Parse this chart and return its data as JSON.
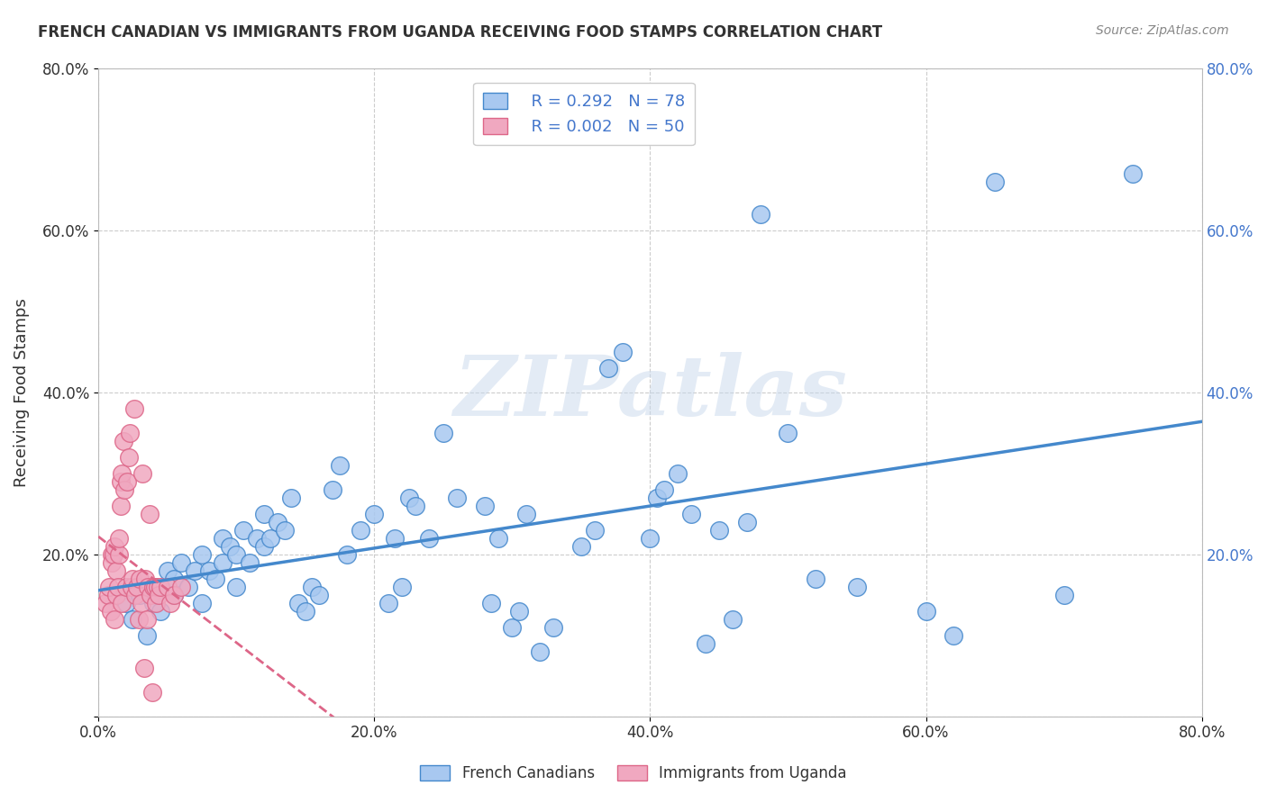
{
  "title": "FRENCH CANADIAN VS IMMIGRANTS FROM UGANDA RECEIVING FOOD STAMPS CORRELATION CHART",
  "source": "Source: ZipAtlas.com",
  "ylabel": "Receiving Food Stamps",
  "xlabel": "",
  "xlim": [
    0.0,
    0.8
  ],
  "ylim": [
    0.0,
    0.8
  ],
  "xtick_labels": [
    "0.0%",
    "20.0%",
    "40.0%",
    "60.0%",
    "80.0%"
  ],
  "ytick_labels": [
    "",
    "20.0%",
    "40.0%",
    "60.0%",
    "80.0%"
  ],
  "xtick_vals": [
    0.0,
    0.2,
    0.4,
    0.6,
    0.8
  ],
  "ytick_vals": [
    0.0,
    0.2,
    0.4,
    0.6,
    0.8
  ],
  "grid_color": "#cccccc",
  "bg_color": "#ffffff",
  "watermark": "ZIPatlas",
  "legend_r1": "R = 0.292",
  "legend_n1": "N = 78",
  "legend_r2": "R = 0.002",
  "legend_n2": "N = 50",
  "color_blue": "#a8c8f0",
  "color_pink": "#f0a8c0",
  "line_blue": "#4488cc",
  "line_pink": "#dd6688",
  "legend_text_color": "#4477cc",
  "french_x": [
    0.02,
    0.025,
    0.03,
    0.035,
    0.04,
    0.04,
    0.045,
    0.05,
    0.055,
    0.055,
    0.06,
    0.065,
    0.07,
    0.075,
    0.075,
    0.08,
    0.085,
    0.09,
    0.09,
    0.095,
    0.1,
    0.1,
    0.105,
    0.11,
    0.115,
    0.12,
    0.12,
    0.125,
    0.13,
    0.135,
    0.14,
    0.145,
    0.15,
    0.155,
    0.16,
    0.17,
    0.175,
    0.18,
    0.19,
    0.2,
    0.21,
    0.215,
    0.22,
    0.225,
    0.23,
    0.24,
    0.25,
    0.26,
    0.28,
    0.285,
    0.29,
    0.3,
    0.305,
    0.31,
    0.32,
    0.33,
    0.35,
    0.36,
    0.37,
    0.38,
    0.4,
    0.405,
    0.41,
    0.42,
    0.43,
    0.44,
    0.45,
    0.46,
    0.47,
    0.48,
    0.5,
    0.52,
    0.55,
    0.6,
    0.62,
    0.65,
    0.7,
    0.75
  ],
  "french_y": [
    0.14,
    0.12,
    0.15,
    0.1,
    0.14,
    0.16,
    0.13,
    0.18,
    0.17,
    0.15,
    0.19,
    0.16,
    0.18,
    0.14,
    0.2,
    0.18,
    0.17,
    0.22,
    0.19,
    0.21,
    0.16,
    0.2,
    0.23,
    0.19,
    0.22,
    0.25,
    0.21,
    0.22,
    0.24,
    0.23,
    0.27,
    0.14,
    0.13,
    0.16,
    0.15,
    0.28,
    0.31,
    0.2,
    0.23,
    0.25,
    0.14,
    0.22,
    0.16,
    0.27,
    0.26,
    0.22,
    0.35,
    0.27,
    0.26,
    0.14,
    0.22,
    0.11,
    0.13,
    0.25,
    0.08,
    0.11,
    0.21,
    0.23,
    0.43,
    0.45,
    0.22,
    0.27,
    0.28,
    0.3,
    0.25,
    0.09,
    0.23,
    0.12,
    0.24,
    0.62,
    0.35,
    0.17,
    0.16,
    0.13,
    0.1,
    0.66,
    0.15,
    0.67
  ],
  "uganda_x": [
    0.005,
    0.007,
    0.008,
    0.009,
    0.01,
    0.01,
    0.011,
    0.012,
    0.012,
    0.013,
    0.013,
    0.014,
    0.015,
    0.015,
    0.016,
    0.016,
    0.017,
    0.017,
    0.018,
    0.019,
    0.02,
    0.021,
    0.022,
    0.023,
    0.024,
    0.025,
    0.026,
    0.027,
    0.028,
    0.029,
    0.03,
    0.031,
    0.032,
    0.033,
    0.034,
    0.035,
    0.036,
    0.037,
    0.038,
    0.039,
    0.04,
    0.041,
    0.042,
    0.043,
    0.044,
    0.045,
    0.05,
    0.052,
    0.055,
    0.06
  ],
  "uganda_y": [
    0.14,
    0.15,
    0.16,
    0.13,
    0.2,
    0.19,
    0.2,
    0.12,
    0.21,
    0.15,
    0.18,
    0.16,
    0.2,
    0.22,
    0.26,
    0.29,
    0.3,
    0.14,
    0.34,
    0.28,
    0.16,
    0.29,
    0.32,
    0.35,
    0.16,
    0.17,
    0.38,
    0.15,
    0.16,
    0.12,
    0.17,
    0.14,
    0.3,
    0.06,
    0.17,
    0.12,
    0.16,
    0.25,
    0.15,
    0.03,
    0.16,
    0.16,
    0.14,
    0.16,
    0.15,
    0.16,
    0.16,
    0.14,
    0.15,
    0.16
  ]
}
